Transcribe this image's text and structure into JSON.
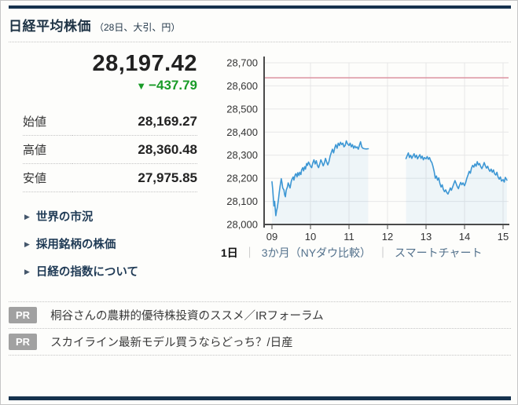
{
  "header": {
    "title": "日経平均株価",
    "subtitle": "（28日、大引、円）"
  },
  "icons": {
    "down_triangle": "▼",
    "link_arrow": "▶"
  },
  "quote": {
    "price": "28,197.42",
    "change": "−437.79",
    "change_color": "#199b28",
    "rows": [
      {
        "label": "始値",
        "value": "28,169.27"
      },
      {
        "label": "高値",
        "value": "28,360.48"
      },
      {
        "label": "安値",
        "value": "27,975.85"
      }
    ]
  },
  "links": [
    {
      "label": "世界の市況"
    },
    {
      "label": "採用銘柄の株価"
    },
    {
      "label": "日経の指数について"
    }
  ],
  "chart_nav": {
    "active": "1日",
    "separator": "｜",
    "items": [
      "3か月（NYダウ比較）",
      "スマートチャート"
    ]
  },
  "pr": {
    "badge": "PR",
    "items": [
      "桐谷さんの農耕的優待株投資のススメ／IRフォーラム",
      "スカイライン最新モデル買うならどっち？/日産"
    ]
  },
  "chart_data": {
    "type": "line",
    "title": "",
    "xlabel": "",
    "ylabel": "",
    "ylim": [
      28000,
      28700
    ],
    "ytick_step": 100,
    "x_hours": [
      9,
      10,
      11,
      12,
      13,
      14,
      15
    ],
    "x_labels": [
      "09",
      "10",
      "11",
      "12",
      "13",
      "14",
      "15"
    ],
    "prev_close": 28635.21,
    "grid": true,
    "colors": {
      "line": "#3d97d4",
      "fill": "rgba(61,151,212,0.08)",
      "grid": "#e7e7e7",
      "axis": "#4a4a4a",
      "prev_close": "#dc93a1"
    },
    "sessions": [
      {
        "name": "morning",
        "points": [
          [
            9.0,
            28185
          ],
          [
            9.02,
            28150
          ],
          [
            9.05,
            28080
          ],
          [
            9.07,
            28100
          ],
          [
            9.1,
            28038
          ],
          [
            9.12,
            28060
          ],
          [
            9.14,
            28075
          ],
          [
            9.17,
            28110
          ],
          [
            9.19,
            28140
          ],
          [
            9.21,
            28165
          ],
          [
            9.24,
            28198
          ],
          [
            9.26,
            28182
          ],
          [
            9.28,
            28158
          ],
          [
            9.31,
            28150
          ],
          [
            9.33,
            28128
          ],
          [
            9.35,
            28120
          ],
          [
            9.37,
            28148
          ],
          [
            9.4,
            28162
          ],
          [
            9.42,
            28180
          ],
          [
            9.45,
            28168
          ],
          [
            9.47,
            28158
          ],
          [
            9.5,
            28186
          ],
          [
            9.52,
            28196
          ],
          [
            9.55,
            28206
          ],
          [
            9.57,
            28192
          ],
          [
            9.6,
            28214
          ],
          [
            9.62,
            28220
          ],
          [
            9.65,
            28206
          ],
          [
            9.67,
            28224
          ],
          [
            9.7,
            28212
          ],
          [
            9.72,
            28226
          ],
          [
            9.75,
            28216
          ],
          [
            9.77,
            28236
          ],
          [
            9.8,
            28246
          ],
          [
            9.82,
            28232
          ],
          [
            9.85,
            28250
          ],
          [
            9.87,
            28240
          ],
          [
            9.9,
            28264
          ],
          [
            9.92,
            28256
          ],
          [
            9.95,
            28270
          ],
          [
            9.98,
            28260
          ],
          [
            10.0,
            28252
          ],
          [
            10.03,
            28246
          ],
          [
            10.06,
            28266
          ],
          [
            10.09,
            28280
          ],
          [
            10.12,
            28262
          ],
          [
            10.15,
            28276
          ],
          [
            10.18,
            28256
          ],
          [
            10.21,
            28246
          ],
          [
            10.24,
            28262
          ],
          [
            10.27,
            28280
          ],
          [
            10.3,
            28268
          ],
          [
            10.33,
            28254
          ],
          [
            10.36,
            28266
          ],
          [
            10.39,
            28286
          ],
          [
            10.42,
            28270
          ],
          [
            10.45,
            28258
          ],
          [
            10.48,
            28272
          ],
          [
            10.51,
            28296
          ],
          [
            10.54,
            28312
          ],
          [
            10.57,
            28326
          ],
          [
            10.6,
            28310
          ],
          [
            10.63,
            28332
          ],
          [
            10.66,
            28346
          ],
          [
            10.69,
            28330
          ],
          [
            10.72,
            28352
          ],
          [
            10.75,
            28342
          ],
          [
            10.78,
            28356
          ],
          [
            10.81,
            28346
          ],
          [
            10.84,
            28352
          ],
          [
            10.87,
            28336
          ],
          [
            10.9,
            28342
          ],
          [
            10.93,
            28362
          ],
          [
            10.96,
            28350
          ],
          [
            11.0,
            28342
          ],
          [
            11.03,
            28352
          ],
          [
            11.06,
            28336
          ],
          [
            11.09,
            28346
          ],
          [
            11.12,
            28330
          ],
          [
            11.15,
            28340
          ],
          [
            11.18,
            28332
          ],
          [
            11.21,
            28336
          ],
          [
            11.24,
            28326
          ],
          [
            11.27,
            28342
          ],
          [
            11.3,
            28358
          ],
          [
            11.33,
            28336
          ],
          [
            11.36,
            28330
          ],
          [
            11.4,
            28328
          ],
          [
            11.45,
            28327
          ],
          [
            11.5,
            28328
          ]
        ]
      },
      {
        "name": "afternoon",
        "points": [
          [
            12.48,
            28285
          ],
          [
            12.51,
            28298
          ],
          [
            12.54,
            28310
          ],
          [
            12.57,
            28290
          ],
          [
            12.6,
            28300
          ],
          [
            12.63,
            28286
          ],
          [
            12.66,
            28296
          ],
          [
            12.69,
            28306
          ],
          [
            12.72,
            28290
          ],
          [
            12.75,
            28300
          ],
          [
            12.78,
            28284
          ],
          [
            12.81,
            28294
          ],
          [
            12.84,
            28302
          ],
          [
            12.87,
            28286
          ],
          [
            12.9,
            28296
          ],
          [
            12.93,
            28280
          ],
          [
            12.96,
            28290
          ],
          [
            13.0,
            28284
          ],
          [
            13.03,
            28294
          ],
          [
            13.06,
            28282
          ],
          [
            13.09,
            28290
          ],
          [
            13.12,
            28276
          ],
          [
            13.15,
            28268
          ],
          [
            13.18,
            28252
          ],
          [
            13.21,
            28230
          ],
          [
            13.24,
            28200
          ],
          [
            13.27,
            28210
          ],
          [
            13.3,
            28192
          ],
          [
            13.33,
            28202
          ],
          [
            13.36,
            28178
          ],
          [
            13.39,
            28162
          ],
          [
            13.42,
            28172
          ],
          [
            13.45,
            28152
          ],
          [
            13.48,
            28142
          ],
          [
            13.51,
            28150
          ],
          [
            13.54,
            28138
          ],
          [
            13.57,
            28132
          ],
          [
            13.6,
            28144
          ],
          [
            13.63,
            28158
          ],
          [
            13.66,
            28148
          ],
          [
            13.69,
            28162
          ],
          [
            13.72,
            28176
          ],
          [
            13.75,
            28190
          ],
          [
            13.78,
            28178
          ],
          [
            13.81,
            28164
          ],
          [
            13.84,
            28155
          ],
          [
            13.87,
            28170
          ],
          [
            13.9,
            28182
          ],
          [
            13.93,
            28172
          ],
          [
            13.96,
            28180
          ],
          [
            14.0,
            28168
          ],
          [
            14.03,
            28182
          ],
          [
            14.06,
            28200
          ],
          [
            14.09,
            28214
          ],
          [
            14.12,
            28230
          ],
          [
            14.15,
            28222
          ],
          [
            14.18,
            28244
          ],
          [
            14.21,
            28256
          ],
          [
            14.24,
            28248
          ],
          [
            14.27,
            28262
          ],
          [
            14.3,
            28252
          ],
          [
            14.33,
            28272
          ],
          [
            14.36,
            28258
          ],
          [
            14.39,
            28264
          ],
          [
            14.42,
            28250
          ],
          [
            14.45,
            28242
          ],
          [
            14.48,
            28254
          ],
          [
            14.51,
            28268
          ],
          [
            14.54,
            28254
          ],
          [
            14.57,
            28244
          ],
          [
            14.6,
            28252
          ],
          [
            14.63,
            28238
          ],
          [
            14.66,
            28230
          ],
          [
            14.69,
            28240
          ],
          [
            14.72,
            28226
          ],
          [
            14.75,
            28236
          ],
          [
            14.78,
            28220
          ],
          [
            14.81,
            28214
          ],
          [
            14.84,
            28226
          ],
          [
            14.87,
            28206
          ],
          [
            14.9,
            28196
          ],
          [
            14.93,
            28206
          ],
          [
            14.96,
            28188
          ],
          [
            15.0,
            28194
          ],
          [
            15.03,
            28184
          ],
          [
            15.06,
            28204
          ],
          [
            15.1,
            28192
          ]
        ]
      }
    ]
  }
}
